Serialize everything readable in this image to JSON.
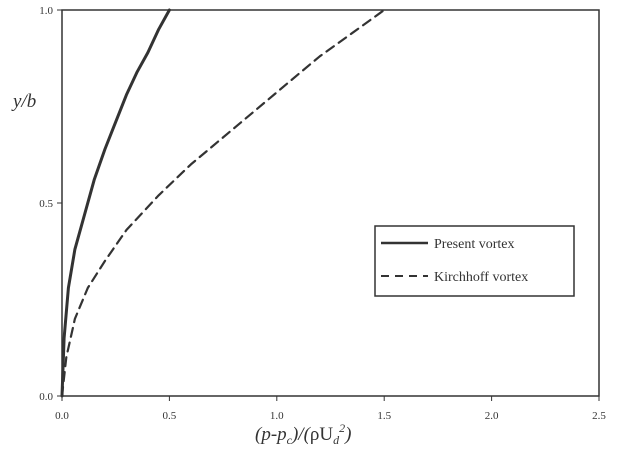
{
  "chart_data": {
    "type": "line",
    "title": "",
    "xlabel": "(p-p c)/(ρU d 2)",
    "ylabel": "y/b",
    "xlabel_parts": {
      "open": "(",
      "p": "p",
      "dash": "-",
      "p2": "p",
      "sub_c": "c",
      "mid": ")/(",
      "rho": "ρ",
      "U": "U",
      "sub_d": "d",
      "sup_2": "2",
      "close": ")"
    },
    "xlim": [
      0,
      2.5
    ],
    "ylim": [
      0,
      1.0
    ],
    "xticks": [
      "0.0",
      "0.5",
      "1.0",
      "1.5",
      "2.0",
      "2.5"
    ],
    "yticks": [
      "0.0",
      "0.5",
      "1.0"
    ],
    "grid": false,
    "legend_position": "right",
    "series": [
      {
        "name": "Present vortex",
        "style": "solid",
        "color": "#333333",
        "x": [
          0.0,
          0.01,
          0.03,
          0.06,
          0.1,
          0.15,
          0.2,
          0.25,
          0.3,
          0.35,
          0.4,
          0.45,
          0.5
        ],
        "y": [
          0.0,
          0.15,
          0.28,
          0.38,
          0.46,
          0.56,
          0.64,
          0.71,
          0.78,
          0.84,
          0.89,
          0.95,
          1.0
        ]
      },
      {
        "name": "Kirchhoff vortex",
        "style": "dashed",
        "color": "#333333",
        "x": [
          0.0,
          0.02,
          0.06,
          0.12,
          0.2,
          0.3,
          0.45,
          0.6,
          0.75,
          0.9,
          1.05,
          1.2,
          1.35,
          1.5
        ],
        "y": [
          0.0,
          0.1,
          0.2,
          0.28,
          0.35,
          0.43,
          0.52,
          0.6,
          0.67,
          0.74,
          0.81,
          0.88,
          0.94,
          1.0
        ]
      }
    ]
  }
}
